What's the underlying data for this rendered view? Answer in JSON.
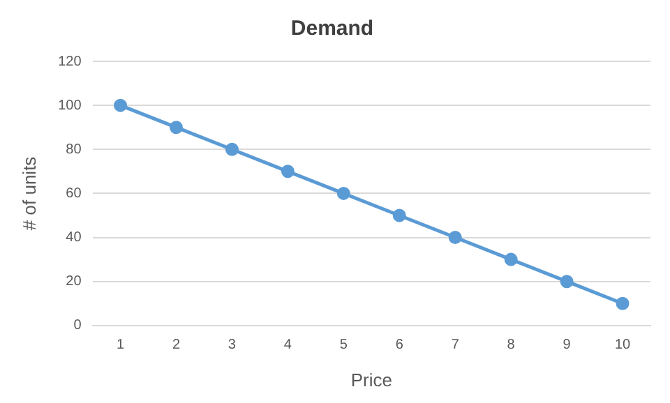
{
  "chart_data": {
    "type": "line",
    "title": "Demand",
    "xlabel": "Price",
    "ylabel": "# of units",
    "categories": [
      "1",
      "2",
      "3",
      "4",
      "5",
      "6",
      "7",
      "8",
      "9",
      "10"
    ],
    "series": [
      {
        "color": "#5b9bd5",
        "values": [
          100,
          90,
          80,
          70,
          60,
          50,
          40,
          30,
          20,
          10
        ]
      }
    ],
    "ylim": [
      0,
      120
    ],
    "yticks": [
      0,
      20,
      40,
      60,
      80,
      100,
      120
    ],
    "grid": "y",
    "legend": false,
    "marker": "circle",
    "line_style": "solid"
  }
}
